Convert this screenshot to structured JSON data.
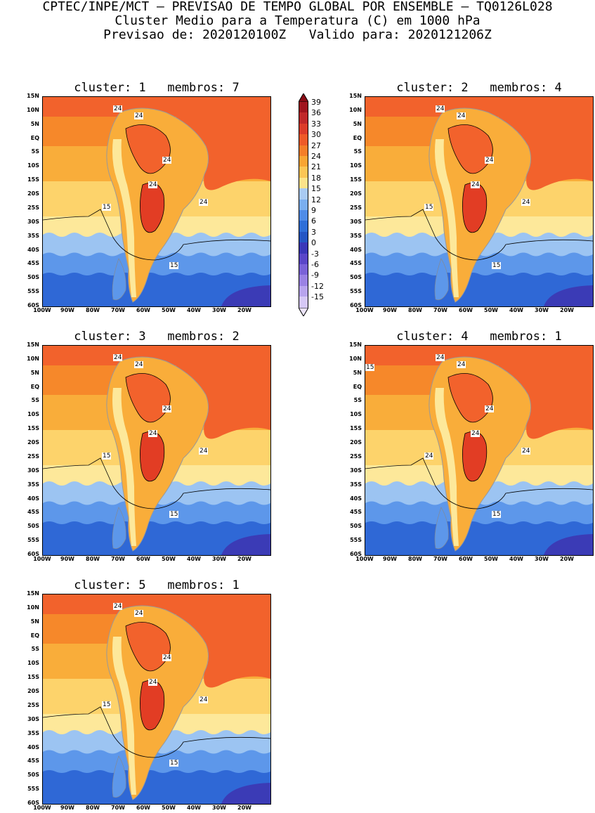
{
  "header": {
    "line1": "CPTEC/INPE/MCT – PREVISAO DE TEMPO GLOBAL POR ENSEMBLE – TQ0126L028",
    "line2": "Cluster Medio para a Temperatura (C) em 1000 hPa",
    "line3": "Previsao de: 2020120100Z   Valido para: 2020121206Z"
  },
  "panels": [
    {
      "title": "cluster: 1   membros: 7",
      "labels": [
        "24",
        "24",
        "24",
        "24",
        "24",
        "15",
        "15"
      ]
    },
    {
      "title": "cluster: 2   membros: 4",
      "labels": [
        "24",
        "24",
        "24",
        "24",
        "24",
        "15",
        "15"
      ]
    },
    {
      "title": "cluster: 3   membros: 2",
      "labels": [
        "24",
        "24",
        "24",
        "24",
        "24",
        "15",
        "15"
      ]
    },
    {
      "title": "cluster: 4   membros: 1",
      "labels": [
        "24",
        "24",
        "24",
        "24",
        "24",
        "24",
        "15",
        "15"
      ]
    },
    {
      "title": "cluster: 5   membros: 1",
      "labels": [
        "24",
        "24",
        "24",
        "24",
        "24",
        "15",
        "15"
      ]
    }
  ],
  "axes": {
    "lat": [
      "15N",
      "10N",
      "5N",
      "EQ",
      "5S",
      "10S",
      "15S",
      "20S",
      "25S",
      "30S",
      "35S",
      "40S",
      "45S",
      "50S",
      "55S",
      "60S"
    ],
    "lon": [
      "100W",
      "90W",
      "80W",
      "70W",
      "60W",
      "50W",
      "40W",
      "30W",
      "20W"
    ]
  },
  "colorbar": {
    "labels": [
      "39",
      "36",
      "33",
      "30",
      "27",
      "24",
      "21",
      "18",
      "15",
      "12",
      "9",
      "6",
      "3",
      "0",
      "-3",
      "-6",
      "-9",
      "-12",
      "-15"
    ],
    "colors": [
      "#a0141e",
      "#c0282a",
      "#dc3c2a",
      "#ef5a28",
      "#f57e28",
      "#f9a533",
      "#fcc655",
      "#fde38a",
      "#a9cbf4",
      "#7aaff0",
      "#4f8ce8",
      "#2f6fd8",
      "#2456c4",
      "#3a37b8",
      "#5a46c8",
      "#7a62d8",
      "#9a82e4",
      "#b8a4ee",
      "#d6c8f6"
    ]
  },
  "palette": {
    "hot": "#e23d24",
    "warm": "#f2622c",
    "orange": "#f6882a",
    "amber": "#f9ad3a",
    "yellow": "#fdd36b",
    "pale": "#fde89a",
    "lblue": "#9cc4f2",
    "mblue": "#5d97ea",
    "dblue": "#2f68d6",
    "deep": "#3b3bb6"
  }
}
